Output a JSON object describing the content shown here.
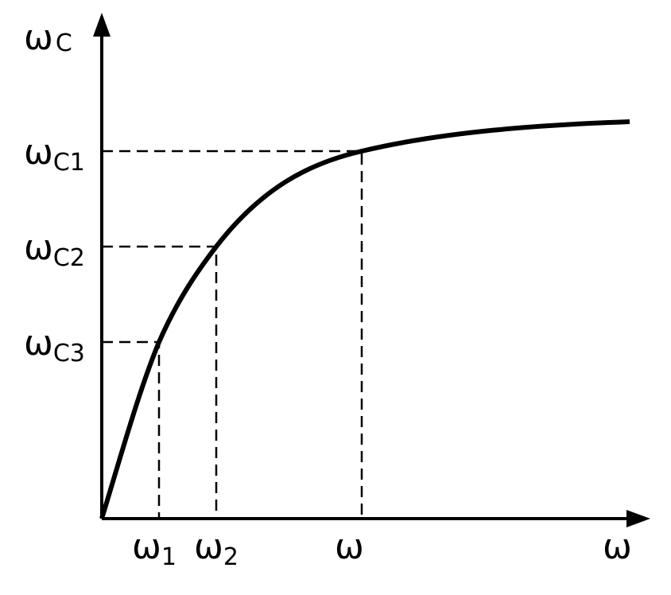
{
  "y_axis": {
    "symbol": "ω",
    "subscript": "C"
  },
  "x_axis": {
    "symbol": "ω"
  },
  "y_labels": [
    {
      "symbol": "ω",
      "subscript": "C1"
    },
    {
      "symbol": "ω",
      "subscript": "C2"
    },
    {
      "symbol": "ω",
      "subscript": "C3"
    }
  ],
  "x_labels": [
    {
      "symbol": "ω",
      "subscript": "1"
    },
    {
      "symbol": "ω",
      "subscript": "2"
    },
    {
      "symbol": "ω"
    }
  ]
}
